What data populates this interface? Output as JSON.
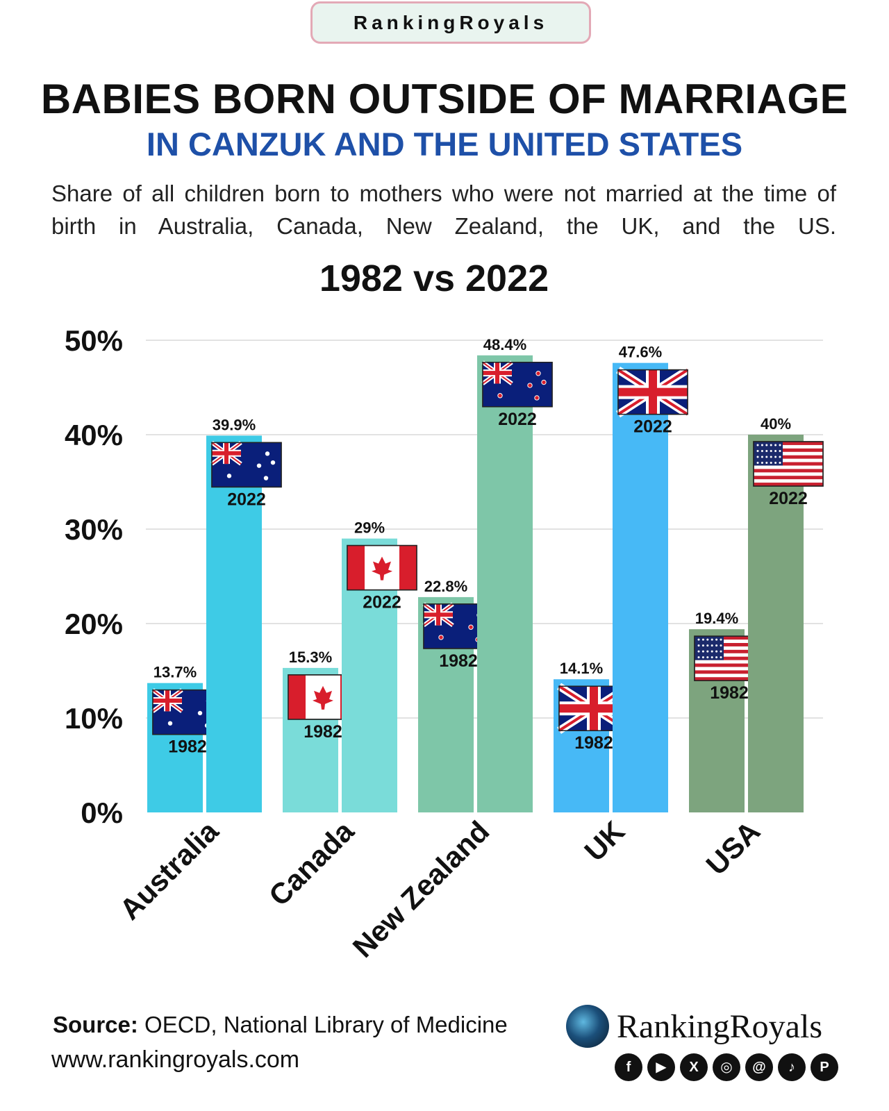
{
  "brand_badge": "RankingRoyals",
  "title": "BABIES BORN OUTSIDE OF MARRIAGE",
  "subtitle": "IN CANZUK AND THE UNITED STATES",
  "description": "Share of all children born to mothers who were not married at the time of birth in Australia, Canada, New Zealand, the UK, and the US.",
  "chart_heading": "1982 vs 2022",
  "chart_data": {
    "type": "bar",
    "title": "1982 vs 2022",
    "xlabel": "",
    "ylabel": "",
    "ylim": [
      0,
      50
    ],
    "y_ticks": [
      "0%",
      "10%",
      "20%",
      "30%",
      "40%",
      "50%"
    ],
    "grid": true,
    "categories": [
      "Australia",
      "Canada",
      "New Zealand",
      "UK",
      "USA"
    ],
    "series": [
      {
        "name": "1982",
        "values": [
          13.7,
          15.3,
          22.8,
          14.1,
          19.4
        ],
        "labels": [
          "13.7%",
          "15.3%",
          "22.8%",
          "14.1%",
          "19.4%"
        ]
      },
      {
        "name": "2022",
        "values": [
          39.9,
          29,
          48.4,
          47.6,
          40
        ],
        "labels": [
          "39.9%",
          "29%",
          "48.4%",
          "47.6%",
          "40%"
        ]
      }
    ],
    "colors": [
      "#3ecbe6",
      "#7adcd9",
      "#7ec6a8",
      "#47b9f6",
      "#7da47e"
    ],
    "flags": [
      "australia-flag",
      "canada-flag",
      "new-zealand-flag",
      "uk-flag",
      "usa-flag"
    ]
  },
  "footer": {
    "source_label": "Source:",
    "source_text": " OECD, National Library of Medicine",
    "url": "www.rankingroyals.com",
    "logo_text": "RankingRoyals",
    "social_icons": [
      "facebook-icon",
      "youtube-icon",
      "x-icon",
      "instagram-icon",
      "threads-icon",
      "tiktok-icon",
      "pinterest-icon"
    ],
    "social_glyphs": [
      "f",
      "▶",
      "X",
      "◎",
      "@",
      "♪",
      "P"
    ]
  }
}
